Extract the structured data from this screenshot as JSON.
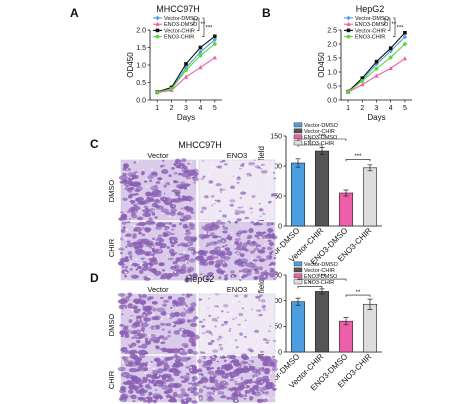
{
  "panels": {
    "a": {
      "label": "A"
    },
    "b": {
      "label": "B"
    },
    "c": {
      "label": "C"
    },
    "d": {
      "label": "D"
    }
  },
  "micro": {
    "c": {
      "title": "MHCC97H",
      "col_labels": [
        "Vector",
        "ENO3"
      ],
      "row_labels": [
        "DMSO",
        "CHIR"
      ]
    },
    "d": {
      "title": "HepG2",
      "col_labels": [
        "Vector",
        "ENO3"
      ],
      "row_labels": [
        "DMSO",
        "CHIR"
      ]
    }
  },
  "colors": {
    "stain": "#8b5fb3",
    "stain_light": "#efe9f6",
    "vector_dmso": "#4b9fe1",
    "eno3_dmso": "#ee5fa9",
    "vector_chir": "#111111",
    "eno3_chir": "#5cd63c"
  },
  "chart_data": [
    {
      "id": "a",
      "type": "line",
      "title": "MHCC97H",
      "xlabel": "Days",
      "ylabel": "OD450",
      "x": [
        1,
        2,
        3,
        4,
        5
      ],
      "xlim": [
        0.5,
        5.5
      ],
      "ylim": [
        0.0,
        2.0
      ],
      "yticks": [
        0.0,
        0.5,
        1.0,
        1.5,
        2.0
      ],
      "yticklabels": [
        "0.0",
        "0.5",
        "1.0",
        "1.5",
        "2.0"
      ],
      "legend_position": "top-left",
      "series": [
        {
          "name": "Vector-DMSO",
          "color": "#4b9fe1",
          "values": [
            0.22,
            0.33,
            0.92,
            1.37,
            1.72
          ]
        },
        {
          "name": "ENO3-DMSO",
          "color": "#ee5fa9",
          "values": [
            0.21,
            0.28,
            0.66,
            0.93,
            1.21
          ]
        },
        {
          "name": "Vector-CHIR",
          "color": "#111111",
          "values": [
            0.23,
            0.36,
            1.03,
            1.5,
            1.82
          ]
        },
        {
          "name": "ENO3-CHIR",
          "color": "#5cd63c",
          "values": [
            0.22,
            0.32,
            0.85,
            1.27,
            1.6
          ]
        }
      ],
      "annotations": [
        "*",
        "**",
        "***"
      ]
    },
    {
      "id": "b",
      "type": "line",
      "title": "HepG2",
      "xlabel": "Days",
      "ylabel": "OD450",
      "x": [
        1,
        2,
        3,
        4,
        5
      ],
      "xlim": [
        0.5,
        5.5
      ],
      "ylim": [
        0.0,
        2.5
      ],
      "yticks": [
        0.0,
        0.5,
        1.0,
        1.5,
        2.0,
        2.5
      ],
      "yticklabels": [
        "0.0",
        "0.5",
        "1.0",
        "1.5",
        "2.0",
        "2.5"
      ],
      "legend_position": "top-left",
      "series": [
        {
          "name": "Vector-DMSO",
          "color": "#4b9fe1",
          "values": [
            0.3,
            0.72,
            1.28,
            1.75,
            2.25
          ]
        },
        {
          "name": "ENO3-DMSO",
          "color": "#ee5fa9",
          "values": [
            0.28,
            0.55,
            0.86,
            1.13,
            1.48
          ]
        },
        {
          "name": "Vector-CHIR",
          "color": "#111111",
          "values": [
            0.3,
            0.78,
            1.37,
            1.85,
            2.4
          ]
        },
        {
          "name": "ENO3-CHIR",
          "color": "#5cd63c",
          "values": [
            0.29,
            0.68,
            1.12,
            1.52,
            2.0
          ]
        }
      ],
      "annotations": [
        "*",
        "**",
        "***"
      ]
    },
    {
      "id": "c",
      "type": "bar",
      "ylabel": "Migration cells per field",
      "categories": [
        "Vector-DMSO",
        "Vector-CHIR",
        "ENO3-DMSO",
        "ENO3-CHIR"
      ],
      "values": [
        105,
        125,
        55,
        97
      ],
      "errors": [
        7,
        6,
        5,
        5
      ],
      "colors": [
        "#4b9fe1",
        "#555555",
        "#ee5fa9",
        "#dddddd"
      ],
      "ylim": [
        0,
        150
      ],
      "yticks": [
        0,
        50,
        100,
        150
      ],
      "yticklabels": [
        "0",
        "50",
        "100",
        "150"
      ],
      "legend_position": "top-left",
      "legend": [
        "Vector-DMSO",
        "Vector-CHIR",
        "ENO3-DMSO",
        "ENO3-CHIR"
      ],
      "significance": [
        {
          "from": 0,
          "to": 1,
          "label": "*",
          "level": 135
        },
        {
          "from": 0,
          "to": 2,
          "label": "***",
          "level": 145
        },
        {
          "from": 2,
          "to": 3,
          "label": "***",
          "level": 111
        }
      ]
    },
    {
      "id": "d",
      "type": "bar",
      "ylabel": "Migration cells per field",
      "categories": [
        "Vector-DMSO",
        "Vector-CHIR",
        "ENO3-DMSO",
        "ENO3-CHIR"
      ],
      "values": [
        98,
        118,
        60,
        93
      ],
      "errors": [
        7,
        5,
        7,
        10
      ],
      "colors": [
        "#4b9fe1",
        "#555555",
        "#ee5fa9",
        "#dddddd"
      ],
      "ylim": [
        0,
        150
      ],
      "yticks": [
        0,
        50,
        100,
        150
      ],
      "yticklabels": [
        "0",
        "50",
        "100",
        "150"
      ],
      "legend_position": "top-left",
      "legend": [
        "Vector-DMSO",
        "Vector-CHIR",
        "ENO3-DMSO",
        "ENO3-CHIR"
      ],
      "significance": [
        {
          "from": 0,
          "to": 1,
          "label": "*",
          "level": 128
        },
        {
          "from": 0,
          "to": 2,
          "label": "***",
          "level": 142
        },
        {
          "from": 2,
          "to": 3,
          "label": "**",
          "level": 111
        }
      ]
    }
  ]
}
